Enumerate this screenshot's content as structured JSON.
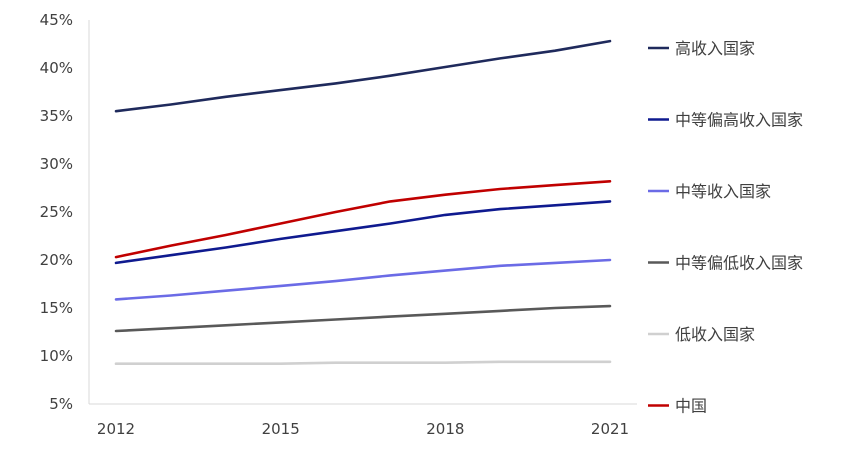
{
  "chart_data": {
    "type": "line",
    "title": "",
    "xlabel": "",
    "ylabel": "",
    "x": [
      2012,
      2013,
      2014,
      2015,
      2016,
      2017,
      2018,
      2019,
      2020,
      2021
    ],
    "x_ticks": [
      "2012",
      "2015",
      "2018",
      "2021"
    ],
    "y_ticks": [
      "5%",
      "10%",
      "15%",
      "20%",
      "25%",
      "30%",
      "35%",
      "40%",
      "45%"
    ],
    "ylim": [
      5,
      45
    ],
    "y_unit": "%",
    "grid": false,
    "legend_position": "right",
    "series": [
      {
        "name": "高收入国家",
        "color": "#1f2a5c",
        "values": [
          35.5,
          36.2,
          37.0,
          37.7,
          38.4,
          39.2,
          40.1,
          41.0,
          41.8,
          42.8
        ]
      },
      {
        "name": "中等偏高收入国家",
        "color": "#0f1a8f",
        "values": [
          19.7,
          20.5,
          21.3,
          22.2,
          23.0,
          23.8,
          24.7,
          25.3,
          25.7,
          26.1
        ]
      },
      {
        "name": "中等收入国家",
        "color": "#6b6be6",
        "values": [
          15.9,
          16.3,
          16.8,
          17.3,
          17.8,
          18.4,
          18.9,
          19.4,
          19.7,
          20.0
        ]
      },
      {
        "name": "中等偏低收入国家",
        "color": "#595959",
        "values": [
          12.6,
          12.9,
          13.2,
          13.5,
          13.8,
          14.1,
          14.4,
          14.7,
          15.0,
          15.2
        ]
      },
      {
        "name": "低收入国家",
        "color": "#d0d0d0",
        "values": [
          9.2,
          9.2,
          9.2,
          9.2,
          9.3,
          9.3,
          9.3,
          9.4,
          9.4,
          9.4
        ]
      },
      {
        "name": "中国",
        "color": "#c00000",
        "values": [
          20.3,
          21.5,
          22.6,
          23.8,
          25.0,
          26.1,
          26.8,
          27.4,
          27.8,
          28.2
        ]
      }
    ]
  }
}
